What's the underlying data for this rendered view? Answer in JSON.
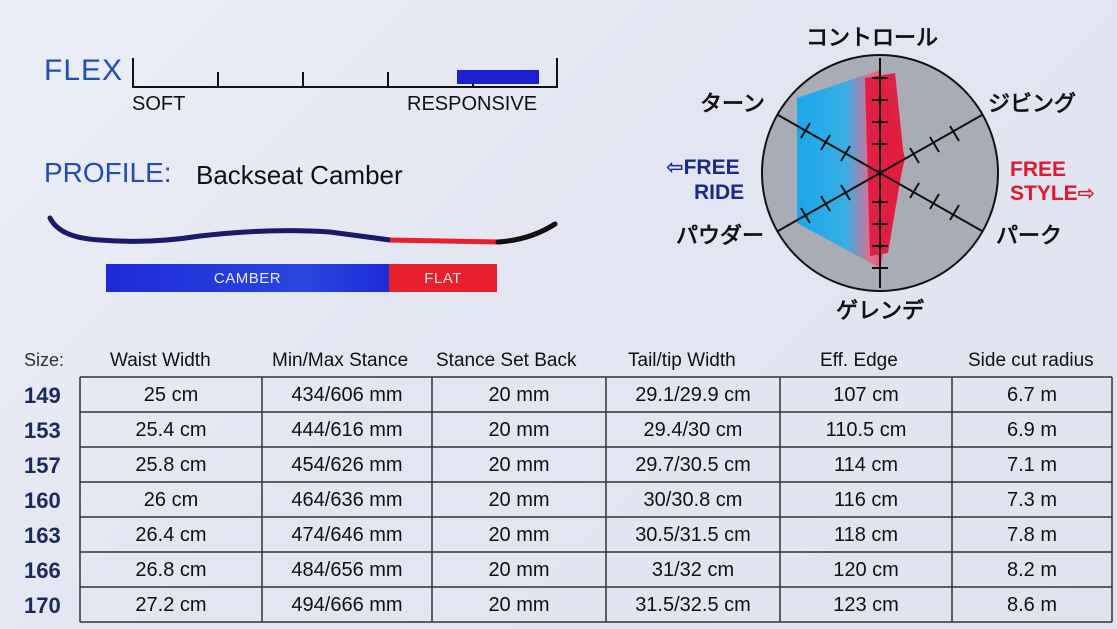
{
  "flex": {
    "title": "FLEX",
    "soft_label": "SOFT",
    "responsive_label": "RESPONSIVE",
    "level": 0.95,
    "fill_color": "#1a1fd0"
  },
  "profile": {
    "label": "PROFILE:",
    "value": "Backseat Camber",
    "camber_label": "CAMBER",
    "flat_label": "FLAT",
    "camber_color": "#1e2bd6",
    "flat_color": "#e8202e"
  },
  "radar": {
    "top": "コントロール",
    "upper_left": "ターン",
    "upper_right": "ジビング",
    "lower_left": "パウダー",
    "lower_right": "パーク",
    "bottom": "ゲレンデ",
    "free_ride": [
      "⇦FREE",
      "RIDE"
    ],
    "free_style": [
      "FREE",
      "STYLE⇨"
    ]
  },
  "table": {
    "headers": [
      "Size:",
      "Waist Width",
      "Min/Max Stance",
      "Stance Set Back",
      "Tail/tip Width",
      "Eff. Edge",
      "Side cut radius"
    ],
    "rows": [
      [
        "149",
        "25 cm",
        "434/606 mm",
        "20 mm",
        "29.1/29.9 cm",
        "107 cm",
        "6.7 m"
      ],
      [
        "153",
        "25.4 cm",
        "444/616 mm",
        "20 mm",
        "29.4/30 cm",
        "110.5 cm",
        "6.9 m"
      ],
      [
        "157",
        "25.8 cm",
        "454/626 mm",
        "20 mm",
        "29.7/30.5 cm",
        "114 cm",
        "7.1 m"
      ],
      [
        "160",
        "26 cm",
        "464/636 mm",
        "20 mm",
        "30/30.8 cm",
        "116 cm",
        "7.3 m"
      ],
      [
        "163",
        "26.4 cm",
        "474/646 mm",
        "20 mm",
        "30.5/31.5 cm",
        "118 cm",
        "7.8 m"
      ],
      [
        "166",
        "26.8 cm",
        "484/656 mm",
        "20 mm",
        "31/32 cm",
        "120 cm",
        "8.2 m"
      ],
      [
        "170",
        "27.2 cm",
        "494/666 mm",
        "20 mm",
        "31.5/32.5 cm",
        "123 cm",
        "8.6 m"
      ]
    ]
  }
}
